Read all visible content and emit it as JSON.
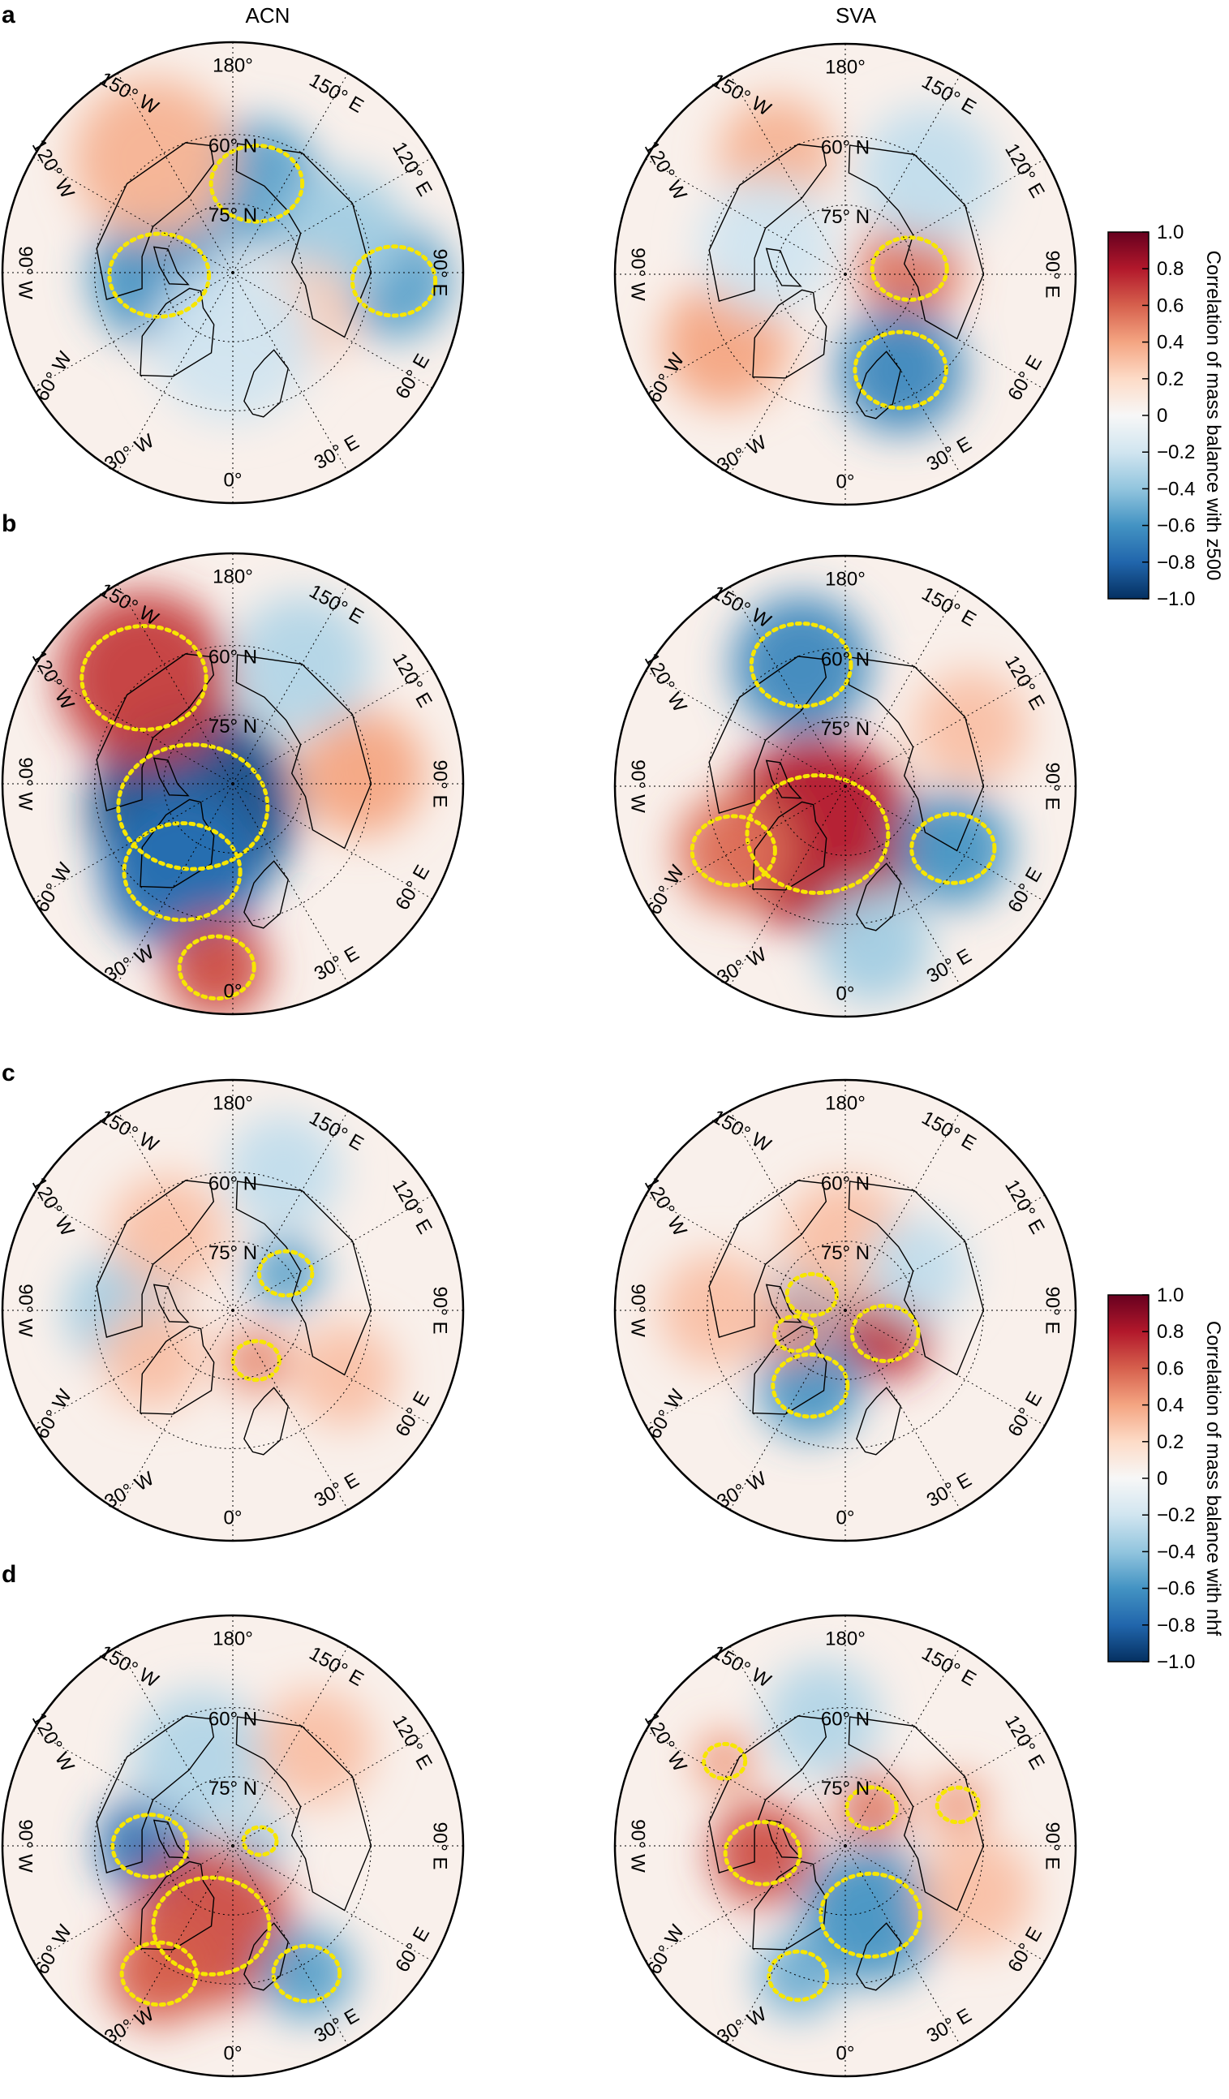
{
  "chart_data": {
    "type": "heatmap",
    "description_text": {
      "columns": [
        "ACN",
        "SVA"
      ],
      "rows": [
        "a",
        "b",
        "c",
        "d"
      ]
    },
    "latitude_labels": [
      "60° N",
      "75° N"
    ],
    "longitude_labels": [
      "180°",
      "150° W",
      "120° W",
      "90° W",
      "60° W",
      "30° W",
      "0°",
      "30° E",
      "60° E",
      "90° E",
      "120° E",
      "150° E"
    ],
    "colorbars": [
      {
        "label": "Correlation of mass balance with z500",
        "range": [
          -1.0,
          1.0
        ],
        "ticks": [
          "1.0",
          "0.8",
          "0.6",
          "0.4",
          "0.2",
          "0",
          "−0.2",
          "−0.4",
          "−0.6",
          "−0.8",
          "−1.0"
        ],
        "colors": [
          "#053061",
          "#2166ac",
          "#4393c3",
          "#92c5de",
          "#d1e5f0",
          "#f7f7f7",
          "#fddbc7",
          "#f4a582",
          "#d6604d",
          "#b2182b",
          "#67001f"
        ]
      },
      {
        "label": "Correlation of mass balance with nhf",
        "range": [
          -1.0,
          1.0
        ],
        "ticks": [
          "1.0",
          "0.8",
          "0.6",
          "0.4",
          "0.2",
          "0",
          "−0.2",
          "−0.4",
          "−0.6",
          "−0.8",
          "−1.0"
        ],
        "colors": [
          "#053061",
          "#2166ac",
          "#4393c3",
          "#92c5de",
          "#d1e5f0",
          "#f7f7f7",
          "#fddbc7",
          "#f4a582",
          "#d6604d",
          "#b2182b",
          "#67001f"
        ]
      }
    ],
    "significance_contour_color": "#f7e600",
    "panels": [
      {
        "id": "a-acn",
        "row": "a",
        "column": "ACN",
        "variable": "z500",
        "blobs": [
          {
            "lon": 165,
            "lat": 70,
            "r": 0.55,
            "v": -0.55,
            "sig": true
          },
          {
            "lon": 272,
            "lat": 74,
            "r": 0.6,
            "v": -0.6,
            "sig": true
          },
          {
            "lon": 87,
            "lat": 55,
            "r": 0.5,
            "v": -0.55,
            "sig": true
          },
          {
            "lon": 215,
            "lat": 60,
            "r": 0.7,
            "v": 0.35,
            "sig": false
          },
          {
            "lon": 110,
            "lat": 65,
            "r": 0.55,
            "v": -0.35,
            "sig": false
          },
          {
            "lon": 60,
            "lat": 72,
            "r": 0.45,
            "v": 0.25,
            "sig": false
          },
          {
            "lon": 0,
            "lat": 75,
            "r": 0.7,
            "v": -0.2,
            "sig": false
          }
        ]
      },
      {
        "id": "a-sva",
        "row": "a",
        "column": "SVA",
        "variable": "z500",
        "blobs": [
          {
            "lon": 95,
            "lat": 76,
            "r": 0.45,
            "v": 0.55,
            "sig": true
          },
          {
            "lon": 30,
            "lat": 66,
            "r": 0.55,
            "v": -0.65,
            "sig": true
          },
          {
            "lon": 300,
            "lat": 60,
            "r": 0.55,
            "v": 0.4,
            "sig": false
          },
          {
            "lon": 210,
            "lat": 60,
            "r": 0.5,
            "v": 0.35,
            "sig": false
          },
          {
            "lon": 140,
            "lat": 62,
            "r": 0.6,
            "v": -0.25,
            "sig": false
          },
          {
            "lon": 250,
            "lat": 72,
            "r": 0.6,
            "v": -0.2,
            "sig": false
          }
        ]
      },
      {
        "id": "b-acn",
        "row": "b",
        "column": "ACN",
        "variable": "z500",
        "blobs": [
          {
            "lon": 300,
            "lat": 80,
            "r": 0.9,
            "v": -0.9,
            "sig": true
          },
          {
            "lon": 330,
            "lat": 68,
            "r": 0.7,
            "v": -0.75,
            "sig": true
          },
          {
            "lon": 220,
            "lat": 60,
            "r": 0.75,
            "v": 0.7,
            "sig": true
          },
          {
            "lon": 355,
            "lat": 50,
            "r": 0.45,
            "v": 0.65,
            "sig": true
          },
          {
            "lon": 95,
            "lat": 62,
            "r": 0.55,
            "v": 0.4,
            "sig": false
          },
          {
            "lon": 150,
            "lat": 60,
            "r": 0.6,
            "v": -0.3,
            "sig": false
          }
        ]
      },
      {
        "id": "b-sva",
        "row": "b",
        "column": "SVA",
        "variable": "z500",
        "blobs": [
          {
            "lon": 330,
            "lat": 78,
            "r": 0.85,
            "v": 0.8,
            "sig": true
          },
          {
            "lon": 300,
            "lat": 62,
            "r": 0.5,
            "v": 0.55,
            "sig": true
          },
          {
            "lon": 200,
            "lat": 62,
            "r": 0.6,
            "v": -0.65,
            "sig": true
          },
          {
            "lon": 60,
            "lat": 63,
            "r": 0.5,
            "v": -0.6,
            "sig": true
          },
          {
            "lon": 115,
            "lat": 60,
            "r": 0.5,
            "v": 0.3,
            "sig": false
          },
          {
            "lon": 10,
            "lat": 55,
            "r": 0.5,
            "v": -0.35,
            "sig": false
          }
        ]
      },
      {
        "id": "c-acn",
        "row": "c",
        "column": "ACN",
        "variable": "nhf",
        "blobs": [
          {
            "lon": 125,
            "lat": 76,
            "r": 0.32,
            "v": -0.55,
            "sig": true
          },
          {
            "lon": 25,
            "lat": 78,
            "r": 0.28,
            "v": 0.5,
            "sig": true
          },
          {
            "lon": 270,
            "lat": 66,
            "r": 0.5,
            "v": -0.35,
            "sig": false
          },
          {
            "lon": 220,
            "lat": 68,
            "r": 0.5,
            "v": 0.3,
            "sig": false
          },
          {
            "lon": 300,
            "lat": 70,
            "r": 0.45,
            "v": 0.3,
            "sig": false
          },
          {
            "lon": 60,
            "lat": 62,
            "r": 0.45,
            "v": 0.3,
            "sig": false
          },
          {
            "lon": 160,
            "lat": 58,
            "r": 0.5,
            "v": -0.25,
            "sig": false
          }
        ]
      },
      {
        "id": "c-sva",
        "row": "c",
        "column": "SVA",
        "variable": "nhf",
        "blobs": [
          {
            "lon": 60,
            "lat": 80,
            "r": 0.4,
            "v": 0.75,
            "sig": true
          },
          {
            "lon": 335,
            "lat": 72,
            "r": 0.45,
            "v": -0.6,
            "sig": true
          },
          {
            "lon": 245,
            "lat": 82,
            "r": 0.3,
            "v": -0.55,
            "sig": true
          },
          {
            "lon": 295,
            "lat": 78,
            "r": 0.25,
            "v": 0.5,
            "sig": true
          },
          {
            "lon": 180,
            "lat": 75,
            "r": 0.55,
            "v": 0.3,
            "sig": false
          },
          {
            "lon": 120,
            "lat": 72,
            "r": 0.45,
            "v": -0.25,
            "sig": false
          },
          {
            "lon": 270,
            "lat": 62,
            "r": 0.5,
            "v": 0.3,
            "sig": false
          }
        ]
      },
      {
        "id": "d-acn",
        "row": "d",
        "column": "ACN",
        "variable": "nhf",
        "blobs": [
          {
            "lon": 270,
            "lat": 72,
            "r": 0.45,
            "v": -0.75,
            "sig": true
          },
          {
            "lon": 345,
            "lat": 72,
            "r": 0.7,
            "v": 0.65,
            "sig": true
          },
          {
            "lon": 330,
            "lat": 58,
            "r": 0.45,
            "v": 0.6,
            "sig": true
          },
          {
            "lon": 30,
            "lat": 58,
            "r": 0.4,
            "v": -0.55,
            "sig": true
          },
          {
            "lon": 100,
            "lat": 84,
            "r": 0.2,
            "v": -0.45,
            "sig": true
          },
          {
            "lon": 200,
            "lat": 70,
            "r": 0.6,
            "v": -0.3,
            "sig": false
          },
          {
            "lon": 140,
            "lat": 62,
            "r": 0.5,
            "v": 0.3,
            "sig": false
          }
        ]
      },
      {
        "id": "d-sva",
        "row": "d",
        "column": "SVA",
        "variable": "nhf",
        "blobs": [
          {
            "lon": 275,
            "lat": 72,
            "r": 0.45,
            "v": 0.65,
            "sig": true
          },
          {
            "lon": 20,
            "lat": 74,
            "r": 0.6,
            "v": -0.6,
            "sig": true
          },
          {
            "lon": 340,
            "lat": 60,
            "r": 0.35,
            "v": -0.5,
            "sig": true
          },
          {
            "lon": 145,
            "lat": 80,
            "r": 0.3,
            "v": 0.55,
            "sig": true
          },
          {
            "lon": 110,
            "lat": 64,
            "r": 0.25,
            "v": 0.45,
            "sig": true
          },
          {
            "lon": 235,
            "lat": 58,
            "r": 0.25,
            "v": 0.45,
            "sig": true
          },
          {
            "lon": 70,
            "lat": 60,
            "r": 0.5,
            "v": 0.3,
            "sig": false
          },
          {
            "lon": 190,
            "lat": 62,
            "r": 0.5,
            "v": -0.3,
            "sig": false
          }
        ]
      }
    ]
  }
}
